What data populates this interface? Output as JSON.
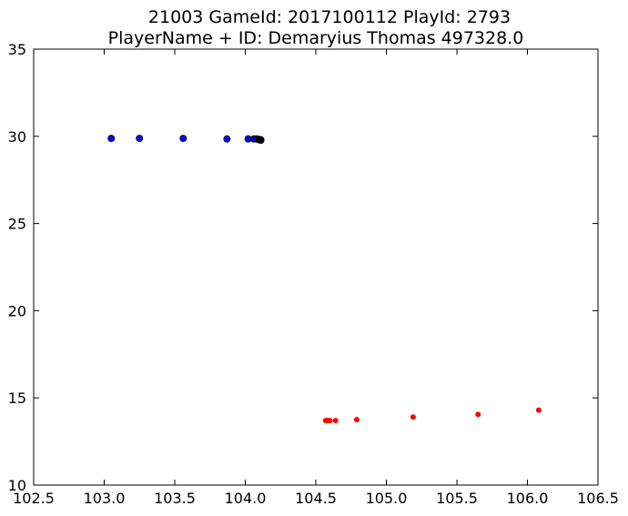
{
  "chart_data": {
    "type": "scatter",
    "title": "21003 GameId: 2017100112 PlayId: 2793",
    "subtitle": "PlayerName + ID: Demaryius Thomas 497328.0",
    "xlabel": "",
    "ylabel": "",
    "xlim": [
      102.5,
      106.5
    ],
    "ylim": [
      10,
      35
    ],
    "xticks": [
      "102.5",
      "103.0",
      "103.5",
      "104.0",
      "104.5",
      "105.0",
      "105.5",
      "106.0",
      "106.5"
    ],
    "yticks": [
      "10",
      "15",
      "20",
      "25",
      "30",
      "35"
    ],
    "grid": false,
    "legend": "none",
    "series": [
      {
        "color": "#0000ff",
        "marker": "circle",
        "points": [
          [
            103.05,
            29.88
          ],
          [
            103.25,
            29.88
          ],
          [
            103.56,
            29.88
          ],
          [
            103.87,
            29.85
          ],
          [
            104.02,
            29.85
          ],
          [
            104.06,
            29.85
          ],
          [
            104.08,
            29.85
          ],
          [
            104.09,
            29.83
          ],
          [
            104.1,
            29.82
          ]
        ]
      },
      {
        "color": "#000000",
        "marker": "circle",
        "points": [
          [
            104.1,
            29.8
          ],
          [
            104.11,
            29.8
          ],
          [
            104.11,
            29.78
          ]
        ]
      },
      {
        "color": "#ff0000",
        "marker": "small-circle",
        "points": [
          [
            104.57,
            13.7
          ],
          [
            104.58,
            13.7
          ],
          [
            104.59,
            13.7
          ],
          [
            104.6,
            13.7
          ],
          [
            104.64,
            13.7
          ],
          [
            104.79,
            13.75
          ],
          [
            105.19,
            13.9
          ],
          [
            105.65,
            14.05
          ],
          [
            106.08,
            14.3
          ]
        ]
      }
    ]
  }
}
